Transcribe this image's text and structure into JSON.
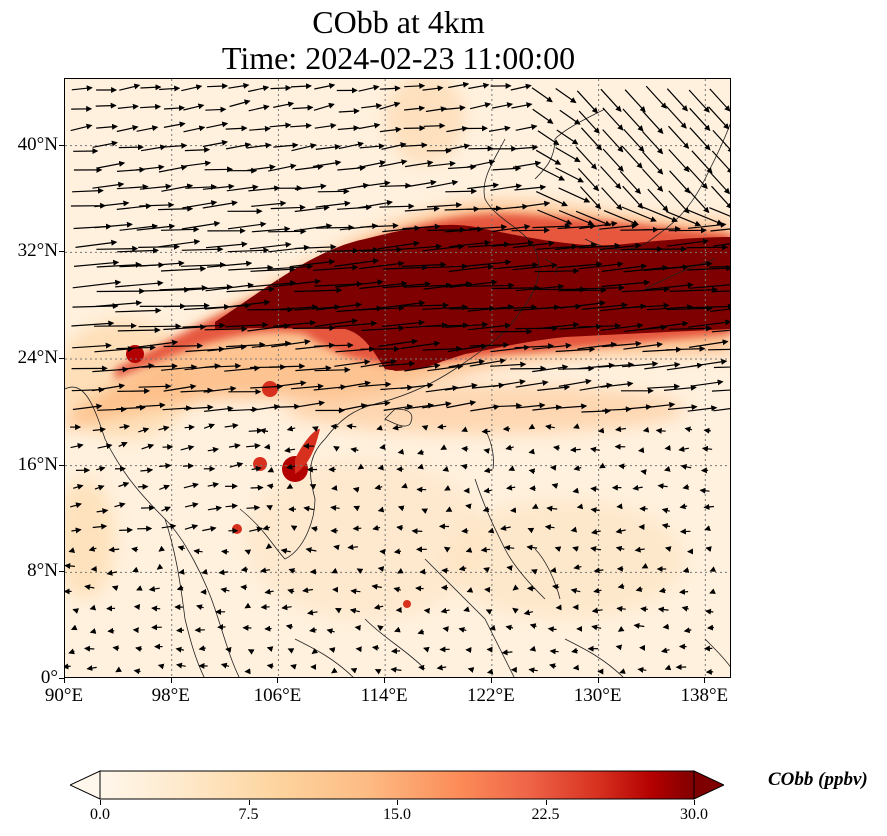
{
  "figure": {
    "title_line1": "CObb at 4km",
    "title_line2": "Time: 2024-02-23 11:00:00"
  },
  "map": {
    "lon_range": [
      90,
      140
    ],
    "lat_range": [
      0,
      45
    ],
    "x_ticks": [
      "90°E",
      "98°E",
      "106°E",
      "114°E",
      "122°E",
      "130°E",
      "138°E"
    ],
    "x_tick_values": [
      90,
      98,
      106,
      114,
      122,
      130,
      138
    ],
    "y_ticks": [
      "0°",
      "8°N",
      "16°N",
      "24°N",
      "32°N",
      "40°N"
    ],
    "y_tick_values": [
      0,
      8,
      16,
      24,
      32,
      40
    ],
    "gridlines": "dotted",
    "colormap": "OrRd",
    "colors": {
      "low": "#fff7ec",
      "mid_low": "#fdd49e",
      "mid": "#fc8d59",
      "high": "#d7301f",
      "max": "#7f0000",
      "coast": "#222222"
    },
    "plume_description_lat_center_at_lon": [
      [
        93,
        23.5
      ],
      [
        100,
        25.5
      ],
      [
        106,
        28
      ],
      [
        114,
        28.5
      ],
      [
        122,
        29
      ],
      [
        130,
        29.5
      ],
      [
        140,
        29.5
      ]
    ]
  },
  "colorbar": {
    "title": "CObb (ppbv)",
    "min": 0.0,
    "max": 30.0,
    "extend": "both",
    "tick_labels": [
      "0.0",
      "7.5",
      "15.0",
      "22.5",
      "30.0"
    ],
    "tick_values": [
      0.0,
      7.5,
      15.0,
      22.5,
      30.0
    ]
  }
}
